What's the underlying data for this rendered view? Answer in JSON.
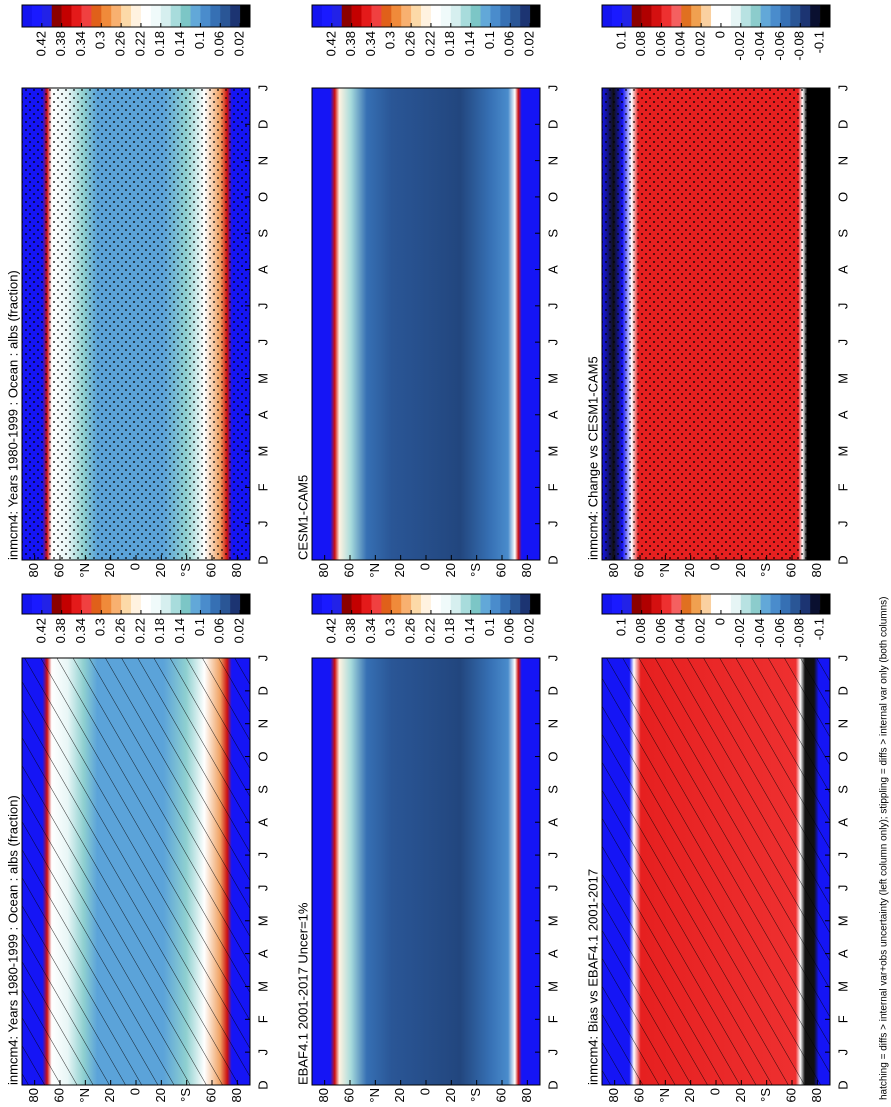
{
  "note": "hatching = diffs > internal var+obs uncertainty (left column only); stippling = diffs > internal var only (both columns)",
  "lat_labels": [
    "80",
    "60",
    "°N",
    "20",
    "0",
    "20",
    "°S",
    "60",
    "80"
  ],
  "months": [
    "D",
    "J",
    "F",
    "M",
    "A",
    "M",
    "J",
    "J",
    "A",
    "S",
    "O",
    "N",
    "D",
    "J"
  ],
  "panels": [
    {
      "title": "inmcm4: Years 1980-1999 : Ocean : albs (fraction)",
      "colorbar": {
        "labels": [
          "0.42",
          "0.38",
          "0.34",
          "0.3",
          "0.26",
          "0.22",
          "0.18",
          "0.14",
          "0.1",
          "0.06",
          "0.02"
        ],
        "colors": [
          "#1414f0",
          "#1a1aff",
          "#2222e8",
          "#8b0000",
          "#c40000",
          "#e41a1a",
          "#f04040",
          "#e0601a",
          "#f08a3a",
          "#f8b070",
          "#fcd9a8",
          "#fff2e0",
          "#ffffff",
          "#f0fafa",
          "#d6efef",
          "#a8dcdc",
          "#7cc6c6",
          "#62a8d8",
          "#4a8ccc",
          "#3670b4",
          "#2a5696",
          "#1c3472",
          "#000000"
        ]
      }
    },
    {
      "title": "inmcm4: Years 1980-1999 : Ocean : albs (fraction)",
      "colorbar": {
        "labels": [
          "0.42",
          "0.38",
          "0.34",
          "0.3",
          "0.26",
          "0.22",
          "0.18",
          "0.14",
          "0.1",
          "0.06",
          "0.02"
        ],
        "colors": [
          "#1414f0",
          "#1a1aff",
          "#2222e8",
          "#8b0000",
          "#c40000",
          "#e41a1a",
          "#f04040",
          "#e0601a",
          "#f08a3a",
          "#f8b070",
          "#fcd9a8",
          "#fff2e0",
          "#ffffff",
          "#f0fafa",
          "#d6efef",
          "#a8dcdc",
          "#7cc6c6",
          "#62a8d8",
          "#4a8ccc",
          "#3670b4",
          "#2a5696",
          "#1c3472",
          "#000000"
        ]
      }
    },
    {
      "title": "EBAF4.1 2001-2017 Uncer=1%",
      "colorbar": {
        "labels": [
          "0.42",
          "0.38",
          "0.34",
          "0.3",
          "0.26",
          "0.22",
          "0.18",
          "0.14",
          "0.1",
          "0.06",
          "0.02"
        ],
        "colors": [
          "#1414f0",
          "#1a1aff",
          "#2222e8",
          "#8b0000",
          "#c40000",
          "#e41a1a",
          "#f04040",
          "#e0601a",
          "#f08a3a",
          "#f8b070",
          "#fcd9a8",
          "#fff2e0",
          "#ffffff",
          "#f0fafa",
          "#d6efef",
          "#a8dcdc",
          "#7cc6c6",
          "#62a8d8",
          "#4a8ccc",
          "#3670b4",
          "#2a5696",
          "#1c3472",
          "#000000"
        ]
      }
    },
    {
      "title": "CESM1-CAM5",
      "colorbar": {
        "labels": [
          "0.42",
          "0.38",
          "0.34",
          "0.3",
          "0.26",
          "0.22",
          "0.18",
          "0.14",
          "0.1",
          "0.06",
          "0.02"
        ],
        "colors": [
          "#1414f0",
          "#1a1aff",
          "#2222e8",
          "#8b0000",
          "#c40000",
          "#e41a1a",
          "#f04040",
          "#e0601a",
          "#f08a3a",
          "#f8b070",
          "#fcd9a8",
          "#fff2e0",
          "#ffffff",
          "#f0fafa",
          "#d6efef",
          "#a8dcdc",
          "#7cc6c6",
          "#62a8d8",
          "#4a8ccc",
          "#3670b4",
          "#2a5696",
          "#1c3472",
          "#000000"
        ]
      }
    },
    {
      "title": "inmcm4: Bias vs EBAF4.1 2001-2017",
      "colorbar": {
        "labels": [
          "0.1",
          "0.08",
          "0.06",
          "0.04",
          "0.02",
          "0",
          "-0.02",
          "-0.04",
          "-0.06",
          "-0.08",
          "-0.1"
        ],
        "colors": [
          "#1414f0",
          "#1a1aff",
          "#2222e8",
          "#8b0000",
          "#b00000",
          "#d41010",
          "#ee3030",
          "#f46060",
          "#e07020",
          "#f0a050",
          "#fad0a0",
          "#ffffff",
          "#ffffff",
          "#e6f5f5",
          "#b8e2e2",
          "#8ccccc",
          "#62a8d8",
          "#4a8ccc",
          "#3670b4",
          "#2a5696",
          "#1c3472",
          "#0a1030",
          "#000000"
        ]
      }
    },
    {
      "title": "inmcm4: Change vs CESM1-CAM5",
      "colorbar": {
        "labels": [
          "0.1",
          "0.08",
          "0.06",
          "0.04",
          "0.02",
          "0",
          "-0.02",
          "-0.04",
          "-0.06",
          "-0.08",
          "-0.1"
        ],
        "colors": [
          "#1414f0",
          "#1a1aff",
          "#2222e8",
          "#8b0000",
          "#b00000",
          "#d41010",
          "#ee3030",
          "#f46060",
          "#e07020",
          "#f0a050",
          "#fad0a0",
          "#ffffff",
          "#ffffff",
          "#e6f5f5",
          "#b8e2e2",
          "#8ccccc",
          "#62a8d8",
          "#4a8ccc",
          "#3670b4",
          "#2a5696",
          "#1c3472",
          "#0a1030",
          "#000000"
        ]
      }
    }
  ]
}
